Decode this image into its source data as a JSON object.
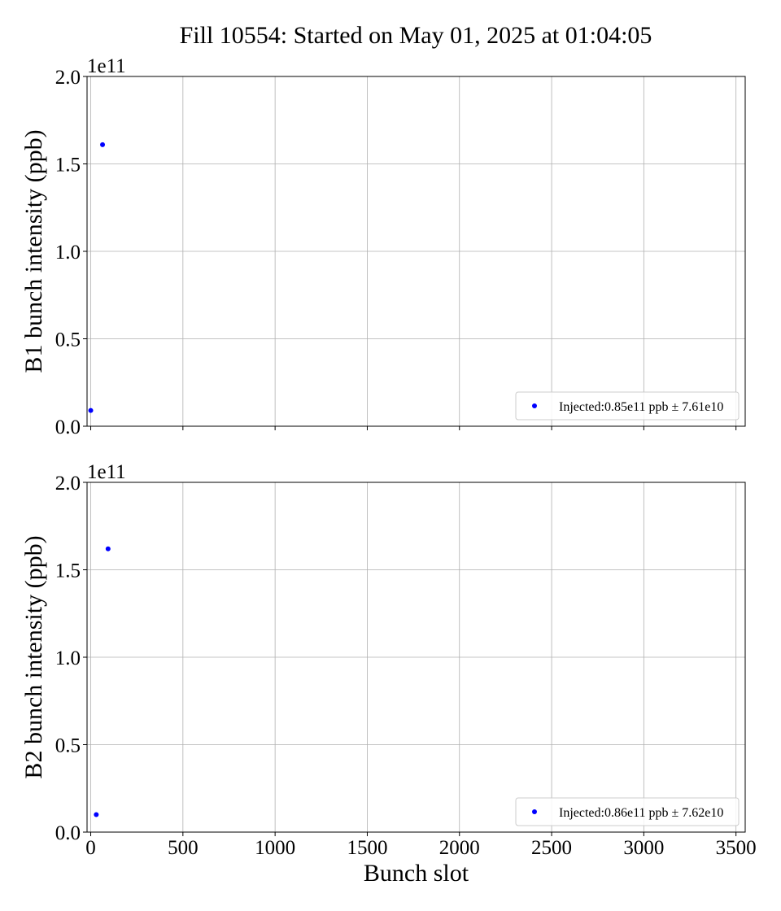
{
  "figure": {
    "title": "Fill 10554: Started on May 01, 2025 at 01:04:05"
  },
  "chart_data": [
    {
      "type": "scatter",
      "panel": "top",
      "title": "Fill 10554: Started on May 01, 2025 at 01:04:05",
      "xlabel": "",
      "ylabel": "B1 bunch intensity (ppb)",
      "y_offset_label": "1e11",
      "xlim": [
        -20,
        3550
      ],
      "ylim": [
        0,
        200000000000.0
      ],
      "xticks": [
        0,
        500,
        1000,
        1500,
        2000,
        2500,
        3000,
        3500
      ],
      "yticks": [
        0.0,
        0.5,
        1.0,
        1.5,
        2.0
      ],
      "ytick_labels": [
        "0.0",
        "0.5",
        "1.0",
        "1.5",
        "2.0"
      ],
      "xtick_labels_visible": false,
      "grid": true,
      "legend_position": "lower-right",
      "series": [
        {
          "name": "Injected:0.85e11 ppb ± 7.61e10",
          "color": "#0000ff",
          "x": [
            0,
            64
          ],
          "y": [
            9000000000.0,
            161000000000.0
          ]
        }
      ]
    },
    {
      "type": "scatter",
      "panel": "bottom",
      "xlabel": "Bunch slot",
      "ylabel": "B2 bunch intensity (ppb)",
      "y_offset_label": "1e11",
      "xlim": [
        -20,
        3550
      ],
      "ylim": [
        0,
        200000000000.0
      ],
      "xticks": [
        0,
        500,
        1000,
        1500,
        2000,
        2500,
        3000,
        3500
      ],
      "xtick_labels": [
        "0",
        "500",
        "1000",
        "1500",
        "2000",
        "2500",
        "3000",
        "3500"
      ],
      "yticks": [
        0.0,
        0.5,
        1.0,
        1.5,
        2.0
      ],
      "ytick_labels": [
        "0.0",
        "0.5",
        "1.0",
        "1.5",
        "2.0"
      ],
      "xtick_labels_visible": true,
      "grid": true,
      "legend_position": "lower-right",
      "series": [
        {
          "name": "Injected:0.86e11 ppb ± 7.62e10",
          "color": "#0000ff",
          "x": [
            30,
            94
          ],
          "y": [
            10000000000.0,
            162000000000.0
          ]
        }
      ]
    }
  ]
}
